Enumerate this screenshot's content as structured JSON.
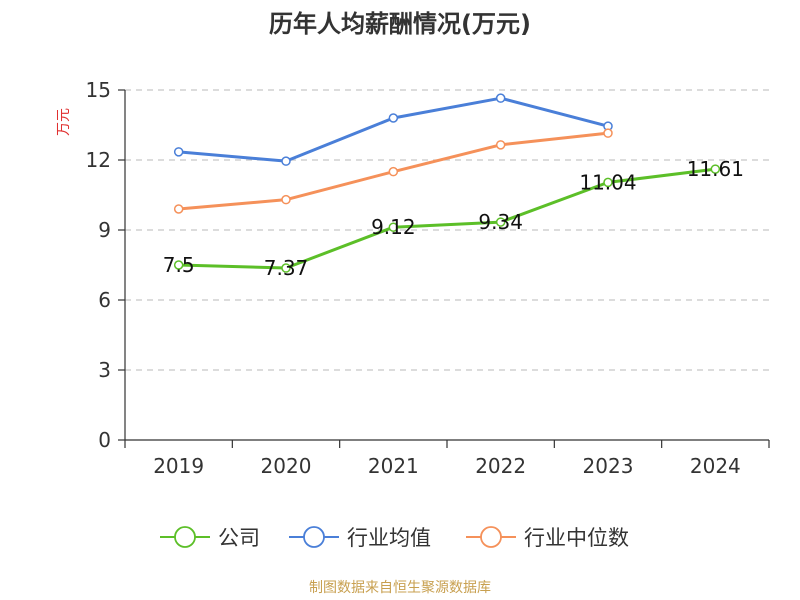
{
  "chart_data": {
    "type": "line",
    "title": "历年人均薪酬情况(万元)",
    "ylabel": "万元",
    "xlabel": "",
    "categories": [
      "2019",
      "2020",
      "2021",
      "2022",
      "2023",
      "2024"
    ],
    "ylim": [
      0,
      15
    ],
    "yticks": [
      0,
      3,
      6,
      9,
      12,
      15
    ],
    "grid": true,
    "legend_position": "bottom",
    "series": [
      {
        "name": "公司",
        "color": "#5cbf28",
        "values": [
          7.5,
          7.37,
          9.12,
          9.34,
          11.04,
          11.61
        ],
        "labels": [
          "7.5",
          "7.37",
          "9.12",
          "9.34",
          "11.04",
          "11.61"
        ]
      },
      {
        "name": "行业均值",
        "color": "#4a7fd8",
        "values": [
          12.35,
          11.95,
          13.8,
          14.65,
          13.45,
          null
        ]
      },
      {
        "name": "行业中位数",
        "color": "#f5915a",
        "values": [
          9.9,
          10.3,
          11.5,
          12.65,
          13.15,
          null
        ]
      }
    ]
  },
  "colors": {
    "ylabel": "#e03030",
    "source": "#c8a050"
  },
  "footer": {
    "source": "制图数据来自恒生聚源数据库"
  }
}
